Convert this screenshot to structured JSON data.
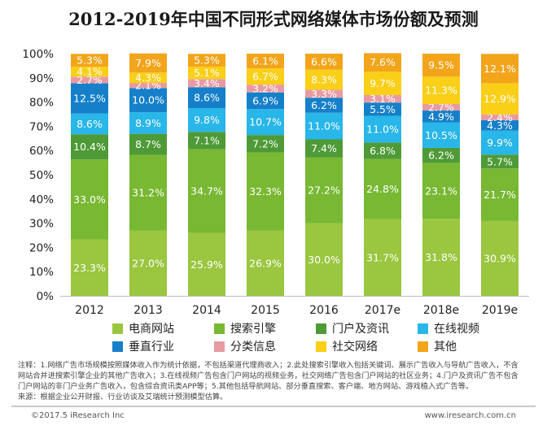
{
  "title": "2012-2019年中国不同形式网络媒体市场份额及预测",
  "chart_data": {
    "type": "bar",
    "stacked": true,
    "percent": true,
    "categories": [
      "2012",
      "2013",
      "2014",
      "2015",
      "2016",
      "2017e",
      "2018e",
      "2019e"
    ],
    "y_ticks": [
      "0%",
      "10%",
      "20%",
      "30%",
      "40%",
      "50%",
      "60%",
      "70%",
      "80%",
      "90%",
      "100%"
    ],
    "ylim": [
      0,
      100
    ],
    "grid": false,
    "legend_position": "bottom",
    "series": [
      {
        "name": "电商网站",
        "color": "#9ac640",
        "values": [
          23.3,
          27.0,
          25.9,
          26.9,
          30.0,
          31.7,
          31.8,
          30.9
        ]
      },
      {
        "name": "搜索引擎",
        "color": "#78b833",
        "values": [
          33.0,
          31.2,
          34.7,
          32.3,
          27.2,
          24.8,
          23.1,
          21.7
        ]
      },
      {
        "name": "门户及资讯",
        "color": "#4e9a37",
        "values": [
          10.4,
          8.7,
          7.1,
          7.2,
          7.4,
          6.8,
          6.2,
          5.7
        ]
      },
      {
        "name": "在线视频",
        "color": "#29b6e8",
        "values": [
          8.6,
          8.9,
          9.8,
          10.7,
          11.0,
          11.0,
          10.5,
          9.9
        ]
      },
      {
        "name": "垂直行业",
        "color": "#1580c9",
        "values": [
          12.5,
          10.0,
          8.6,
          6.9,
          6.2,
          5.5,
          4.9,
          4.3
        ]
      },
      {
        "name": "分类信息",
        "color": "#e89aa3",
        "values": [
          2.7,
          2.1,
          3.4,
          3.2,
          3.3,
          3.1,
          2.7,
          2.4
        ]
      },
      {
        "name": "社交网络",
        "color": "#f9cf18",
        "values": [
          4.1,
          4.3,
          5.1,
          6.7,
          8.3,
          9.7,
          11.3,
          12.9
        ]
      },
      {
        "name": "其他",
        "color": "#f2a51b",
        "values": [
          5.3,
          7.9,
          5.3,
          6.1,
          6.6,
          7.6,
          9.5,
          12.1
        ]
      }
    ]
  },
  "notes": {
    "line1": "注释：1.网络广告市场规模按照媒体收入作为统计依据，不包括渠道代理商收入；2.此处搜索引擎收入包括关键词、展示广告收入与导航广告收入，不含",
    "line2": "网站合并进搜索引擎企业的其他广告收入；3.在线视频广告包含门户网站的视频业务，社交网络广告包含门户网站的社区业务；4.门户及资讯广告不包含",
    "line3": "门户网站的非门户业务广告收入，包含综合资讯类APP等；5.其他包括导航网站、部分垂直搜索、客户端、地方网站、游戏植入式广告等。",
    "line4": "来源：根据企业公开财报、行业访谈及艾瑞统计预测模型估算。"
  },
  "footer": {
    "copyright": "©2017.5 iResearch Inc",
    "website": "www.iresearch.com.cn"
  }
}
